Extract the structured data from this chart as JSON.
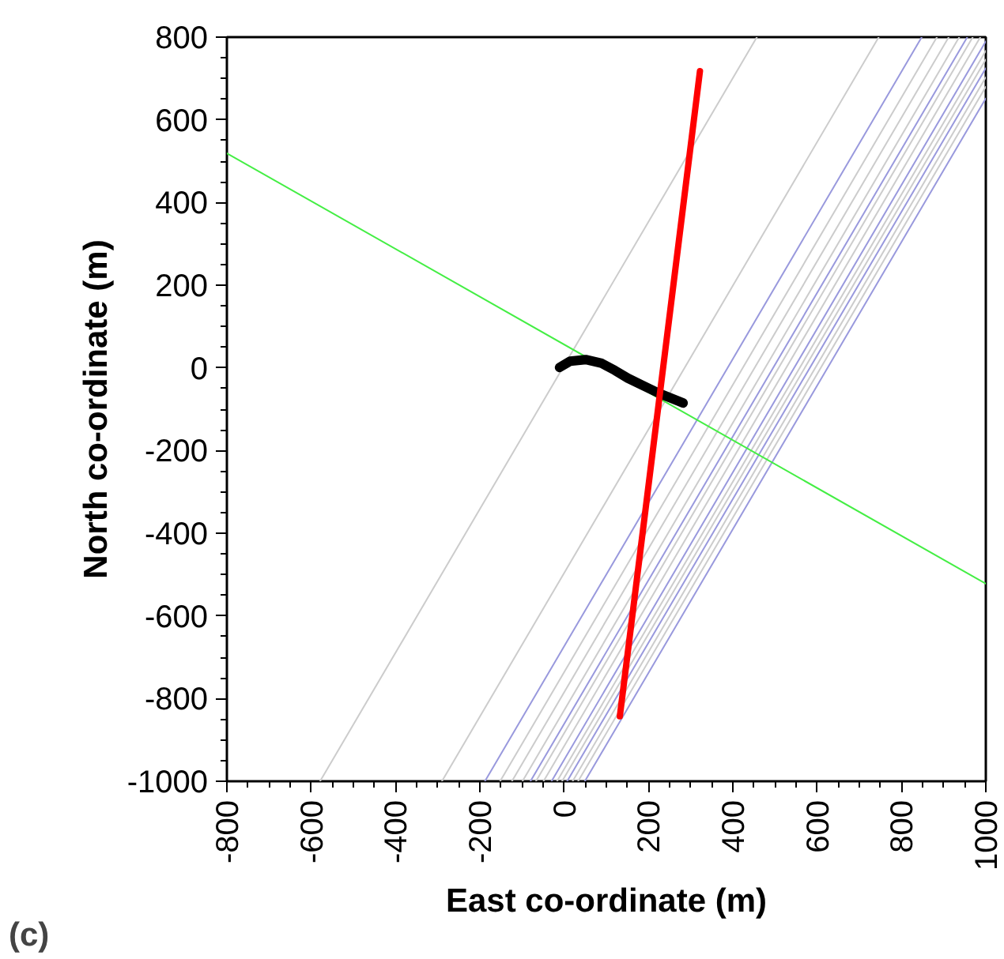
{
  "chart_data": {
    "type": "line",
    "xlabel": "East co-ordinate (m)",
    "ylabel": "North co-ordinate (m)",
    "annotations": [
      "(c)"
    ],
    "xlim": [
      -800,
      1000
    ],
    "ylim": [
      -1000,
      800
    ],
    "xticks": [
      -800,
      -600,
      -400,
      -200,
      0,
      200,
      400,
      600,
      800,
      1000
    ],
    "yticks": [
      -1000,
      -800,
      -600,
      -400,
      -200,
      0,
      200,
      400,
      600,
      800
    ],
    "marker": "none",
    "line_style": "solid",
    "series": [
      {
        "color": "#cccccc",
        "x": [
          -579,
          457
        ],
        "values": [
          -1000,
          800
        ]
      },
      {
        "color": "#cccccc",
        "x": [
          -290,
          746
        ],
        "values": [
          -1000,
          800
        ]
      },
      {
        "color": "#9999dd",
        "x": [
          -188,
          848
        ],
        "values": [
          -1000,
          800
        ]
      },
      {
        "color": "#cccccc",
        "x": [
          -152,
          884
        ],
        "values": [
          -1000,
          800
        ]
      },
      {
        "color": "#cccccc",
        "x": [
          -124,
          912
        ],
        "values": [
          -1000,
          800
        ]
      },
      {
        "color": "#cccccc",
        "x": [
          -99,
          937
        ],
        "values": [
          -1000,
          800
        ]
      },
      {
        "color": "#9999dd",
        "x": [
          -80,
          956
        ],
        "values": [
          -1000,
          800
        ]
      },
      {
        "color": "#cccccc",
        "x": [
          -67,
          969
        ],
        "values": [
          -1000,
          800
        ]
      },
      {
        "color": "#cccccc",
        "x": [
          -49,
          987
        ],
        "values": [
          -1000,
          800
        ]
      },
      {
        "color": "#9999dd",
        "x": [
          -30,
          1000
        ],
        "values": [
          -1000,
          790
        ]
      },
      {
        "color": "#cccccc",
        "x": [
          -17,
          1000
        ],
        "values": [
          -1000,
          767
        ]
      },
      {
        "color": "#cccccc",
        "x": [
          -5,
          1000
        ],
        "values": [
          -1000,
          746
        ]
      },
      {
        "color": "#9999dd",
        "x": [
          7,
          1000
        ],
        "values": [
          -1000,
          725
        ]
      },
      {
        "color": "#cccccc",
        "x": [
          20,
          1000
        ],
        "values": [
          -1000,
          703
        ]
      },
      {
        "color": "#cccccc",
        "x": [
          33,
          1000
        ],
        "values": [
          -1000,
          680
        ]
      },
      {
        "color": "#9999dd",
        "x": [
          49,
          1000
        ],
        "values": [
          -1000,
          652
        ]
      },
      {
        "color": "#44ee44",
        "x": [
          -800,
          1000
        ],
        "values": [
          519,
          -522
        ]
      },
      {
        "color": "#000000",
        "x": [
          -11,
          14,
          51,
          89,
          120,
          151,
          189,
          226,
          282
        ],
        "values": [
          1,
          16,
          20,
          11,
          -6,
          -25,
          -44,
          -62,
          -85
        ]
      },
      {
        "color": "#ff0000",
        "x": [
          132,
          322
        ],
        "values": [
          -843,
          718
        ]
      }
    ]
  }
}
